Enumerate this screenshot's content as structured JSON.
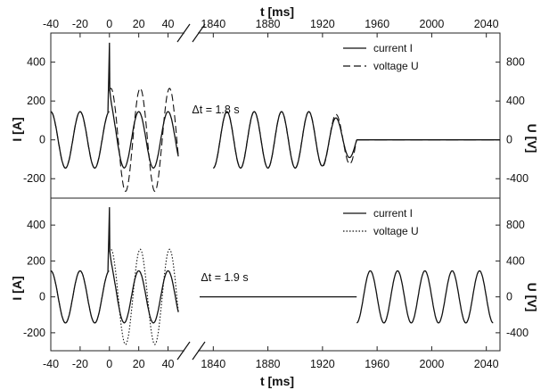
{
  "chart_data": {
    "type": "line",
    "x_axis": {
      "label": "t [ms]",
      "left_segment": {
        "range": [
          -40,
          50
        ],
        "ticks": [
          -40,
          -20,
          0,
          20,
          40
        ]
      },
      "right_segment": {
        "range": [
          1830,
          2050
        ],
        "ticks": [
          1840,
          1880,
          1920,
          1960,
          2000,
          2040
        ]
      },
      "break_between_segments": true
    },
    "y_axis_left": {
      "label": "I [A]",
      "range": [
        -300,
        550
      ],
      "ticks": [
        -200,
        0,
        200,
        400
      ]
    },
    "y_axis_right": {
      "label": "U [V]",
      "range": [
        -600,
        1100
      ],
      "ticks": [
        -400,
        0,
        400,
        800
      ]
    },
    "grid": false,
    "panels": [
      {
        "legend": {
          "position": "top-right",
          "entries": [
            "current I",
            "voltage U"
          ]
        },
        "annotation": "Δt = 1.8 s",
        "series": [
          {
            "name": "current I",
            "style": "solid",
            "axis": "left",
            "segments": [
              {
                "t_start": -40,
                "t_end": 47,
                "amplitude_A": 145,
                "phase_ms": -25,
                "spike_at_ms": 0,
                "spike_peak_A": 500,
                "transient_end_ms": 10
              },
              {
                "t_start": 1840,
                "t_end": 1945,
                "amplitude_A": 145,
                "phase_ms": 1845,
                "decay_after_ms": 1915,
                "end_amplitude_A": 80
              },
              {
                "t_start": 1945,
                "t_end": 2050,
                "amplitude_A": 0
              }
            ]
          },
          {
            "name": "voltage U",
            "style": "dashed",
            "axis": "left",
            "segments": [
              {
                "t_start": -40,
                "t_end": 0,
                "amplitude_A": 145,
                "phase_ms": -25
              },
              {
                "t_start": 0,
                "t_end": 47,
                "amplitude_A": 265,
                "phase_ms": 16
              },
              {
                "t_start": 1840,
                "t_end": 1945,
                "amplitude_A": 145,
                "phase_ms": 1845,
                "grow_after_ms": 1910,
                "end_amplitude_A": 120
              },
              {
                "t_start": 1945,
                "t_end": 2050,
                "amplitude_A": 0,
                "dashed_zero_line": true
              }
            ]
          }
        ]
      },
      {
        "legend": {
          "position": "top-right",
          "entries": [
            "current I",
            "voltage U"
          ]
        },
        "annotation": "Δt = 1.9 s",
        "series": [
          {
            "name": "current I",
            "style": "solid",
            "axis": "left",
            "segments": [
              {
                "t_start": -40,
                "t_end": 47,
                "amplitude_A": 145,
                "phase_ms": -25,
                "spike_at_ms": 0,
                "spike_peak_A": 500,
                "transient_end_ms": 10
              },
              {
                "t_start": 1830,
                "t_end": 1945,
                "amplitude_A": 0
              },
              {
                "t_start": 1945,
                "t_end": 2045,
                "amplitude_A": 145,
                "phase_ms": 1950
              }
            ]
          },
          {
            "name": "voltage U",
            "style": "dotted",
            "axis": "left",
            "segments": [
              {
                "t_start": -40,
                "t_end": 0,
                "amplitude_A": 145,
                "phase_ms": -25
              },
              {
                "t_start": 0,
                "t_end": 47,
                "amplitude_A": 265,
                "phase_ms": 16
              }
            ]
          }
        ]
      }
    ]
  }
}
